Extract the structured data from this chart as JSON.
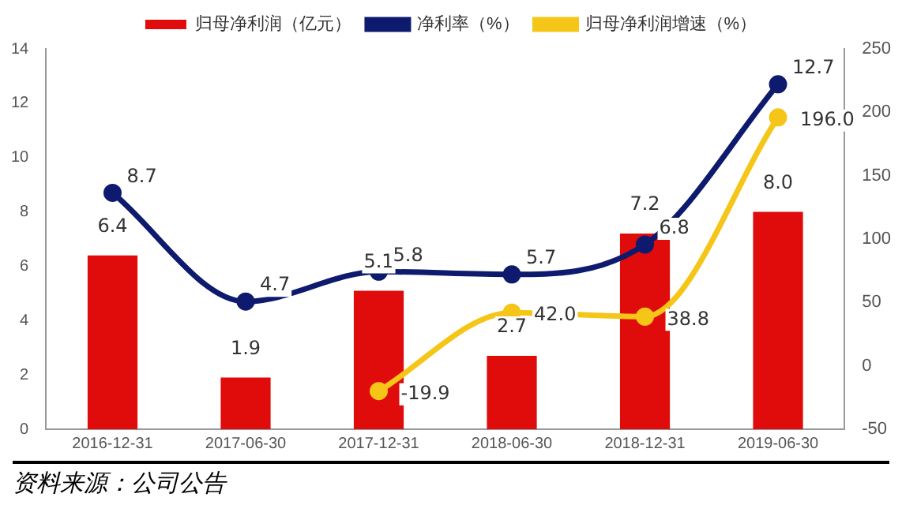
{
  "chart_data": {
    "type": "bar",
    "categories": [
      "2016-12-31",
      "2017-06-30",
      "2017-12-31",
      "2018-06-30",
      "2018-12-31",
      "2019-06-30"
    ],
    "series": [
      {
        "name": "归母净利润（亿元）",
        "color": "#e00b0b",
        "values": [
          6.4,
          1.9,
          5.1,
          2.7,
          7.2,
          8.0
        ],
        "value_labels": [
          "6.4",
          "1.9",
          "5.1",
          "2.7",
          "7.2",
          "8.0"
        ]
      },
      {
        "name": "净利率（%）",
        "type": "line",
        "color": "#0d1a6e",
        "values": [
          8.7,
          4.7,
          5.8,
          5.7,
          6.8,
          12.7
        ],
        "value_labels": [
          "8.7",
          "4.7",
          "5.8",
          "5.7",
          "6.8",
          "12.7"
        ]
      },
      {
        "name": "归母净利润增速（%）",
        "type": "line",
        "color": "#f5c518",
        "axis": "y2",
        "values": [
          null,
          null,
          -19.9,
          42.0,
          38.8,
          196.0
        ],
        "value_labels": [
          null,
          null,
          "-19.9",
          "42.0",
          "38.8",
          "196.0"
        ]
      }
    ],
    "ylim": [
      0,
      14
    ],
    "yticks": [
      0,
      2,
      4,
      6,
      8,
      10,
      12,
      14
    ],
    "y2lim": [
      -50,
      250
    ],
    "y2ticks": [
      -50,
      0,
      50,
      100,
      150,
      200,
      250
    ],
    "legend": "top",
    "grid": false,
    "marker": "circle",
    "annotations": [
      "资料来源：公司公告"
    ]
  }
}
